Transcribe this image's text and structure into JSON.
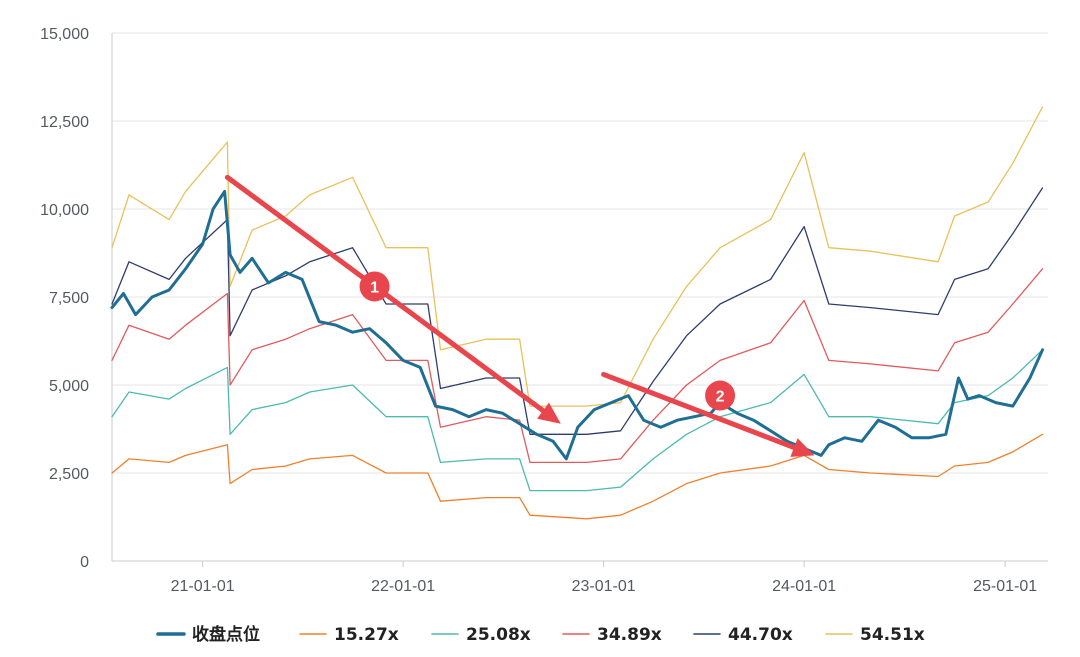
{
  "chart_data": {
    "type": "line",
    "x_ticks": [
      "21-01-01",
      "22-01-01",
      "23-01-01",
      "24-01-01",
      "25-01-01"
    ],
    "y_ticks": [
      "0",
      "2,500",
      "5,000",
      "7,500",
      "10,000",
      "12,500",
      "15,000"
    ],
    "ylim": [
      0,
      15000
    ],
    "xlim": [
      "2020-07-20",
      "2025-03-20"
    ],
    "grid": true,
    "legend_position": "bottom",
    "series": [
      {
        "name": "收盘点位",
        "color": "#1f6e93",
        "points": [
          [
            "2020-07-20",
            7200
          ],
          [
            "2020-08-10",
            7600
          ],
          [
            "2020-09-01",
            7000
          ],
          [
            "2020-10-01",
            7500
          ],
          [
            "2020-11-01",
            7700
          ],
          [
            "2020-12-01",
            8300
          ],
          [
            "2021-01-01",
            9000
          ],
          [
            "2021-01-20",
            10000
          ],
          [
            "2021-02-10",
            10500
          ],
          [
            "2021-02-20",
            8700
          ],
          [
            "2021-03-10",
            8200
          ],
          [
            "2021-04-01",
            8600
          ],
          [
            "2021-05-01",
            7900
          ],
          [
            "2021-06-01",
            8200
          ],
          [
            "2021-07-01",
            8000
          ],
          [
            "2021-08-01",
            6800
          ],
          [
            "2021-09-01",
            6700
          ],
          [
            "2021-10-01",
            6500
          ],
          [
            "2021-11-01",
            6600
          ],
          [
            "2021-12-01",
            6200
          ],
          [
            "2022-01-01",
            5700
          ],
          [
            "2022-02-01",
            5500
          ],
          [
            "2022-03-01",
            4400
          ],
          [
            "2022-04-01",
            4300
          ],
          [
            "2022-05-01",
            4100
          ],
          [
            "2022-06-01",
            4300
          ],
          [
            "2022-07-01",
            4200
          ],
          [
            "2022-08-01",
            3900
          ],
          [
            "2022-09-01",
            3600
          ],
          [
            "2022-10-01",
            3400
          ],
          [
            "2022-10-25",
            2900
          ],
          [
            "2022-11-15",
            3800
          ],
          [
            "2022-12-15",
            4300
          ],
          [
            "2023-01-15",
            4500
          ],
          [
            "2023-02-15",
            4700
          ],
          [
            "2023-03-15",
            4000
          ],
          [
            "2023-04-15",
            3800
          ],
          [
            "2023-05-15",
            4000
          ],
          [
            "2023-06-15",
            4100
          ],
          [
            "2023-07-15",
            4200
          ],
          [
            "2023-08-01",
            4500
          ],
          [
            "2023-09-01",
            4200
          ],
          [
            "2023-10-01",
            4000
          ],
          [
            "2023-11-01",
            3700
          ],
          [
            "2023-12-01",
            3400
          ],
          [
            "2024-01-01",
            3200
          ],
          [
            "2024-02-01",
            3000
          ],
          [
            "2024-02-15",
            3300
          ],
          [
            "2024-03-15",
            3500
          ],
          [
            "2024-04-15",
            3400
          ],
          [
            "2024-05-15",
            4000
          ],
          [
            "2024-06-15",
            3800
          ],
          [
            "2024-07-15",
            3500
          ],
          [
            "2024-08-15",
            3500
          ],
          [
            "2024-09-15",
            3600
          ],
          [
            "2024-10-08",
            5200
          ],
          [
            "2024-10-25",
            4600
          ],
          [
            "2024-11-15",
            4700
          ],
          [
            "2024-12-15",
            4500
          ],
          [
            "2025-01-15",
            4400
          ],
          [
            "2025-02-15",
            5200
          ],
          [
            "2025-03-10",
            6000
          ]
        ]
      },
      {
        "name": "15.27x",
        "color": "#f0802d",
        "points": [
          [
            "2020-07-20",
            2500
          ],
          [
            "2020-08-20",
            2900
          ],
          [
            "2020-11-01",
            2800
          ],
          [
            "2020-12-01",
            3000
          ],
          [
            "2021-02-15",
            3300
          ],
          [
            "2021-02-20",
            2200
          ],
          [
            "2021-04-01",
            2600
          ],
          [
            "2021-06-01",
            2700
          ],
          [
            "2021-07-15",
            2900
          ],
          [
            "2021-10-01",
            3000
          ],
          [
            "2021-12-01",
            2500
          ],
          [
            "2022-02-15",
            2500
          ],
          [
            "2022-03-10",
            1700
          ],
          [
            "2022-06-01",
            1800
          ],
          [
            "2022-08-01",
            1800
          ],
          [
            "2022-08-20",
            1300
          ],
          [
            "2022-12-01",
            1200
          ],
          [
            "2023-02-01",
            1300
          ],
          [
            "2023-04-01",
            1700
          ],
          [
            "2023-06-01",
            2200
          ],
          [
            "2023-08-01",
            2500
          ],
          [
            "2023-11-01",
            2700
          ],
          [
            "2024-01-01",
            3000
          ],
          [
            "2024-02-15",
            2600
          ],
          [
            "2024-05-01",
            2500
          ],
          [
            "2024-09-01",
            2400
          ],
          [
            "2024-10-01",
            2700
          ],
          [
            "2024-12-01",
            2800
          ],
          [
            "2025-01-15",
            3100
          ],
          [
            "2025-03-10",
            3600
          ]
        ]
      },
      {
        "name": "25.08x",
        "color": "#4dbab0",
        "points": [
          [
            "2020-07-20",
            4100
          ],
          [
            "2020-08-20",
            4800
          ],
          [
            "2020-11-01",
            4600
          ],
          [
            "2020-12-01",
            4900
          ],
          [
            "2021-02-15",
            5500
          ],
          [
            "2021-02-20",
            3600
          ],
          [
            "2021-04-01",
            4300
          ],
          [
            "2021-06-01",
            4500
          ],
          [
            "2021-07-15",
            4800
          ],
          [
            "2021-10-01",
            5000
          ],
          [
            "2021-12-01",
            4100
          ],
          [
            "2022-02-15",
            4100
          ],
          [
            "2022-03-10",
            2800
          ],
          [
            "2022-06-01",
            2900
          ],
          [
            "2022-08-01",
            2900
          ],
          [
            "2022-08-20",
            2000
          ],
          [
            "2022-12-01",
            2000
          ],
          [
            "2023-02-01",
            2100
          ],
          [
            "2023-04-01",
            2900
          ],
          [
            "2023-06-01",
            3600
          ],
          [
            "2023-08-01",
            4100
          ],
          [
            "2023-11-01",
            4500
          ],
          [
            "2024-01-01",
            5300
          ],
          [
            "2024-02-15",
            4100
          ],
          [
            "2024-05-01",
            4100
          ],
          [
            "2024-09-01",
            3900
          ],
          [
            "2024-10-01",
            4500
          ],
          [
            "2024-12-01",
            4700
          ],
          [
            "2025-01-15",
            5200
          ],
          [
            "2025-03-10",
            6000
          ]
        ]
      },
      {
        "name": "34.89x",
        "color": "#e05a5e",
        "points": [
          [
            "2020-07-20",
            5700
          ],
          [
            "2020-08-20",
            6700
          ],
          [
            "2020-11-01",
            6300
          ],
          [
            "2020-12-01",
            6700
          ],
          [
            "2021-02-15",
            7600
          ],
          [
            "2021-02-20",
            5000
          ],
          [
            "2021-04-01",
            6000
          ],
          [
            "2021-06-01",
            6300
          ],
          [
            "2021-07-15",
            6600
          ],
          [
            "2021-10-01",
            7000
          ],
          [
            "2021-12-01",
            5700
          ],
          [
            "2022-02-15",
            5700
          ],
          [
            "2022-03-10",
            3800
          ],
          [
            "2022-06-01",
            4100
          ],
          [
            "2022-08-01",
            4000
          ],
          [
            "2022-08-20",
            2800
          ],
          [
            "2022-12-01",
            2800
          ],
          [
            "2023-02-01",
            2900
          ],
          [
            "2023-04-01",
            4000
          ],
          [
            "2023-06-01",
            5000
          ],
          [
            "2023-08-01",
            5700
          ],
          [
            "2023-11-01",
            6200
          ],
          [
            "2024-01-01",
            7400
          ],
          [
            "2024-02-15",
            5700
          ],
          [
            "2024-05-01",
            5600
          ],
          [
            "2024-09-01",
            5400
          ],
          [
            "2024-10-01",
            6200
          ],
          [
            "2024-12-01",
            6500
          ],
          [
            "2025-01-15",
            7300
          ],
          [
            "2025-03-10",
            8300
          ]
        ]
      },
      {
        "name": "44.70x",
        "color": "#2e3d6e",
        "points": [
          [
            "2020-07-20",
            7300
          ],
          [
            "2020-08-20",
            8500
          ],
          [
            "2020-11-01",
            8000
          ],
          [
            "2020-12-01",
            8600
          ],
          [
            "2021-02-15",
            9700
          ],
          [
            "2021-02-20",
            6400
          ],
          [
            "2021-04-01",
            7700
          ],
          [
            "2021-06-01",
            8100
          ],
          [
            "2021-07-15",
            8500
          ],
          [
            "2021-10-01",
            8900
          ],
          [
            "2021-12-01",
            7300
          ],
          [
            "2022-02-15",
            7300
          ],
          [
            "2022-03-10",
            4900
          ],
          [
            "2022-06-01",
            5200
          ],
          [
            "2022-08-01",
            5200
          ],
          [
            "2022-08-20",
            3600
          ],
          [
            "2022-12-01",
            3600
          ],
          [
            "2023-02-01",
            3700
          ],
          [
            "2023-04-01",
            5100
          ],
          [
            "2023-06-01",
            6400
          ],
          [
            "2023-08-01",
            7300
          ],
          [
            "2023-11-01",
            8000
          ],
          [
            "2024-01-01",
            9500
          ],
          [
            "2024-02-15",
            7300
          ],
          [
            "2024-05-01",
            7200
          ],
          [
            "2024-09-01",
            7000
          ],
          [
            "2024-10-01",
            8000
          ],
          [
            "2024-12-01",
            8300
          ],
          [
            "2025-01-15",
            9300
          ],
          [
            "2025-03-10",
            10600
          ]
        ]
      },
      {
        "name": "54.51x",
        "color": "#e8c15a",
        "points": [
          [
            "2020-07-20",
            8900
          ],
          [
            "2020-08-20",
            10400
          ],
          [
            "2020-11-01",
            9700
          ],
          [
            "2020-12-01",
            10500
          ],
          [
            "2021-02-15",
            11900
          ],
          [
            "2021-02-20",
            7800
          ],
          [
            "2021-04-01",
            9400
          ],
          [
            "2021-06-01",
            9800
          ],
          [
            "2021-07-15",
            10400
          ],
          [
            "2021-10-01",
            10900
          ],
          [
            "2021-12-01",
            8900
          ],
          [
            "2022-02-15",
            8900
          ],
          [
            "2022-03-10",
            6000
          ],
          [
            "2022-06-01",
            6300
          ],
          [
            "2022-08-01",
            6300
          ],
          [
            "2022-08-20",
            4400
          ],
          [
            "2022-12-01",
            4400
          ],
          [
            "2023-02-01",
            4500
          ],
          [
            "2023-04-01",
            6300
          ],
          [
            "2023-06-01",
            7800
          ],
          [
            "2023-08-01",
            8900
          ],
          [
            "2023-11-01",
            9700
          ],
          [
            "2024-01-01",
            11600
          ],
          [
            "2024-02-15",
            8900
          ],
          [
            "2024-05-01",
            8800
          ],
          [
            "2024-09-01",
            8500
          ],
          [
            "2024-10-01",
            9800
          ],
          [
            "2024-12-01",
            10200
          ],
          [
            "2025-01-15",
            11300
          ],
          [
            "2025-03-10",
            12900
          ]
        ]
      }
    ],
    "annotations": [
      {
        "label": "1",
        "color": "#e8464c",
        "arrow_from": [
          "2021-02-15",
          10900
        ],
        "arrow_to": [
          "2022-10-15",
          3900
        ],
        "marker_at": [
          "2021-11-10",
          7800
        ]
      },
      {
        "label": "2",
        "color": "#e8464c",
        "arrow_from": [
          "2023-01-01",
          5300
        ],
        "arrow_to": [
          "2024-01-20",
          3000
        ],
        "marker_at": [
          "2023-08-01",
          4700
        ]
      }
    ]
  }
}
